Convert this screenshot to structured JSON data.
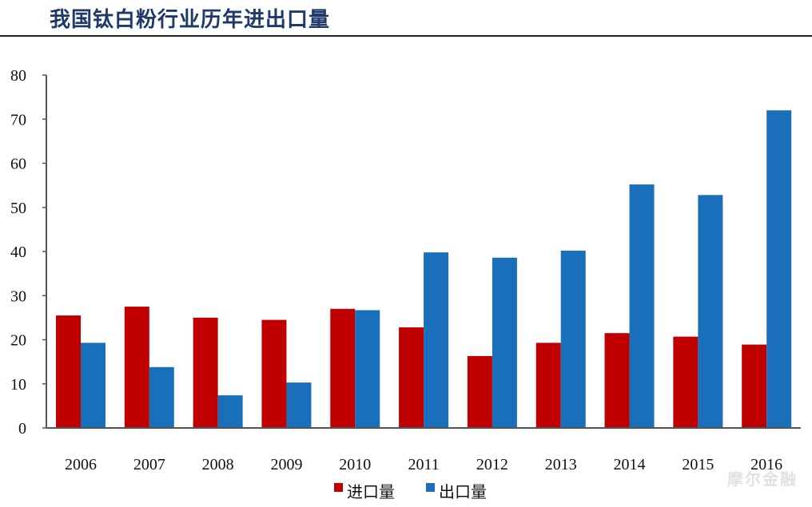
{
  "chart_data": {
    "type": "bar",
    "title": "我国钛白粉行业历年进出口量",
    "categories": [
      "2006",
      "2007",
      "2008",
      "2009",
      "2010",
      "2011",
      "2012",
      "2013",
      "2014",
      "2015",
      "2016"
    ],
    "series": [
      {
        "name": "进口量",
        "color": "#c00000",
        "values": [
          25.5,
          27.5,
          25.0,
          24.5,
          27.0,
          22.8,
          16.3,
          19.3,
          21.5,
          20.7,
          18.9
        ]
      },
      {
        "name": "出口量",
        "color": "#1a6fba",
        "values": [
          19.3,
          13.8,
          7.4,
          10.3,
          26.7,
          39.8,
          38.6,
          40.2,
          55.2,
          52.8,
          72.0
        ]
      }
    ],
    "ylim": [
      0,
      80
    ],
    "yticks": [
      "0",
      "10",
      "20",
      "30",
      "40",
      "50",
      "60",
      "70",
      "80"
    ],
    "xlabel": "",
    "ylabel": "",
    "grid": false,
    "legend": "bottom"
  },
  "watermark": "摩尔金融"
}
